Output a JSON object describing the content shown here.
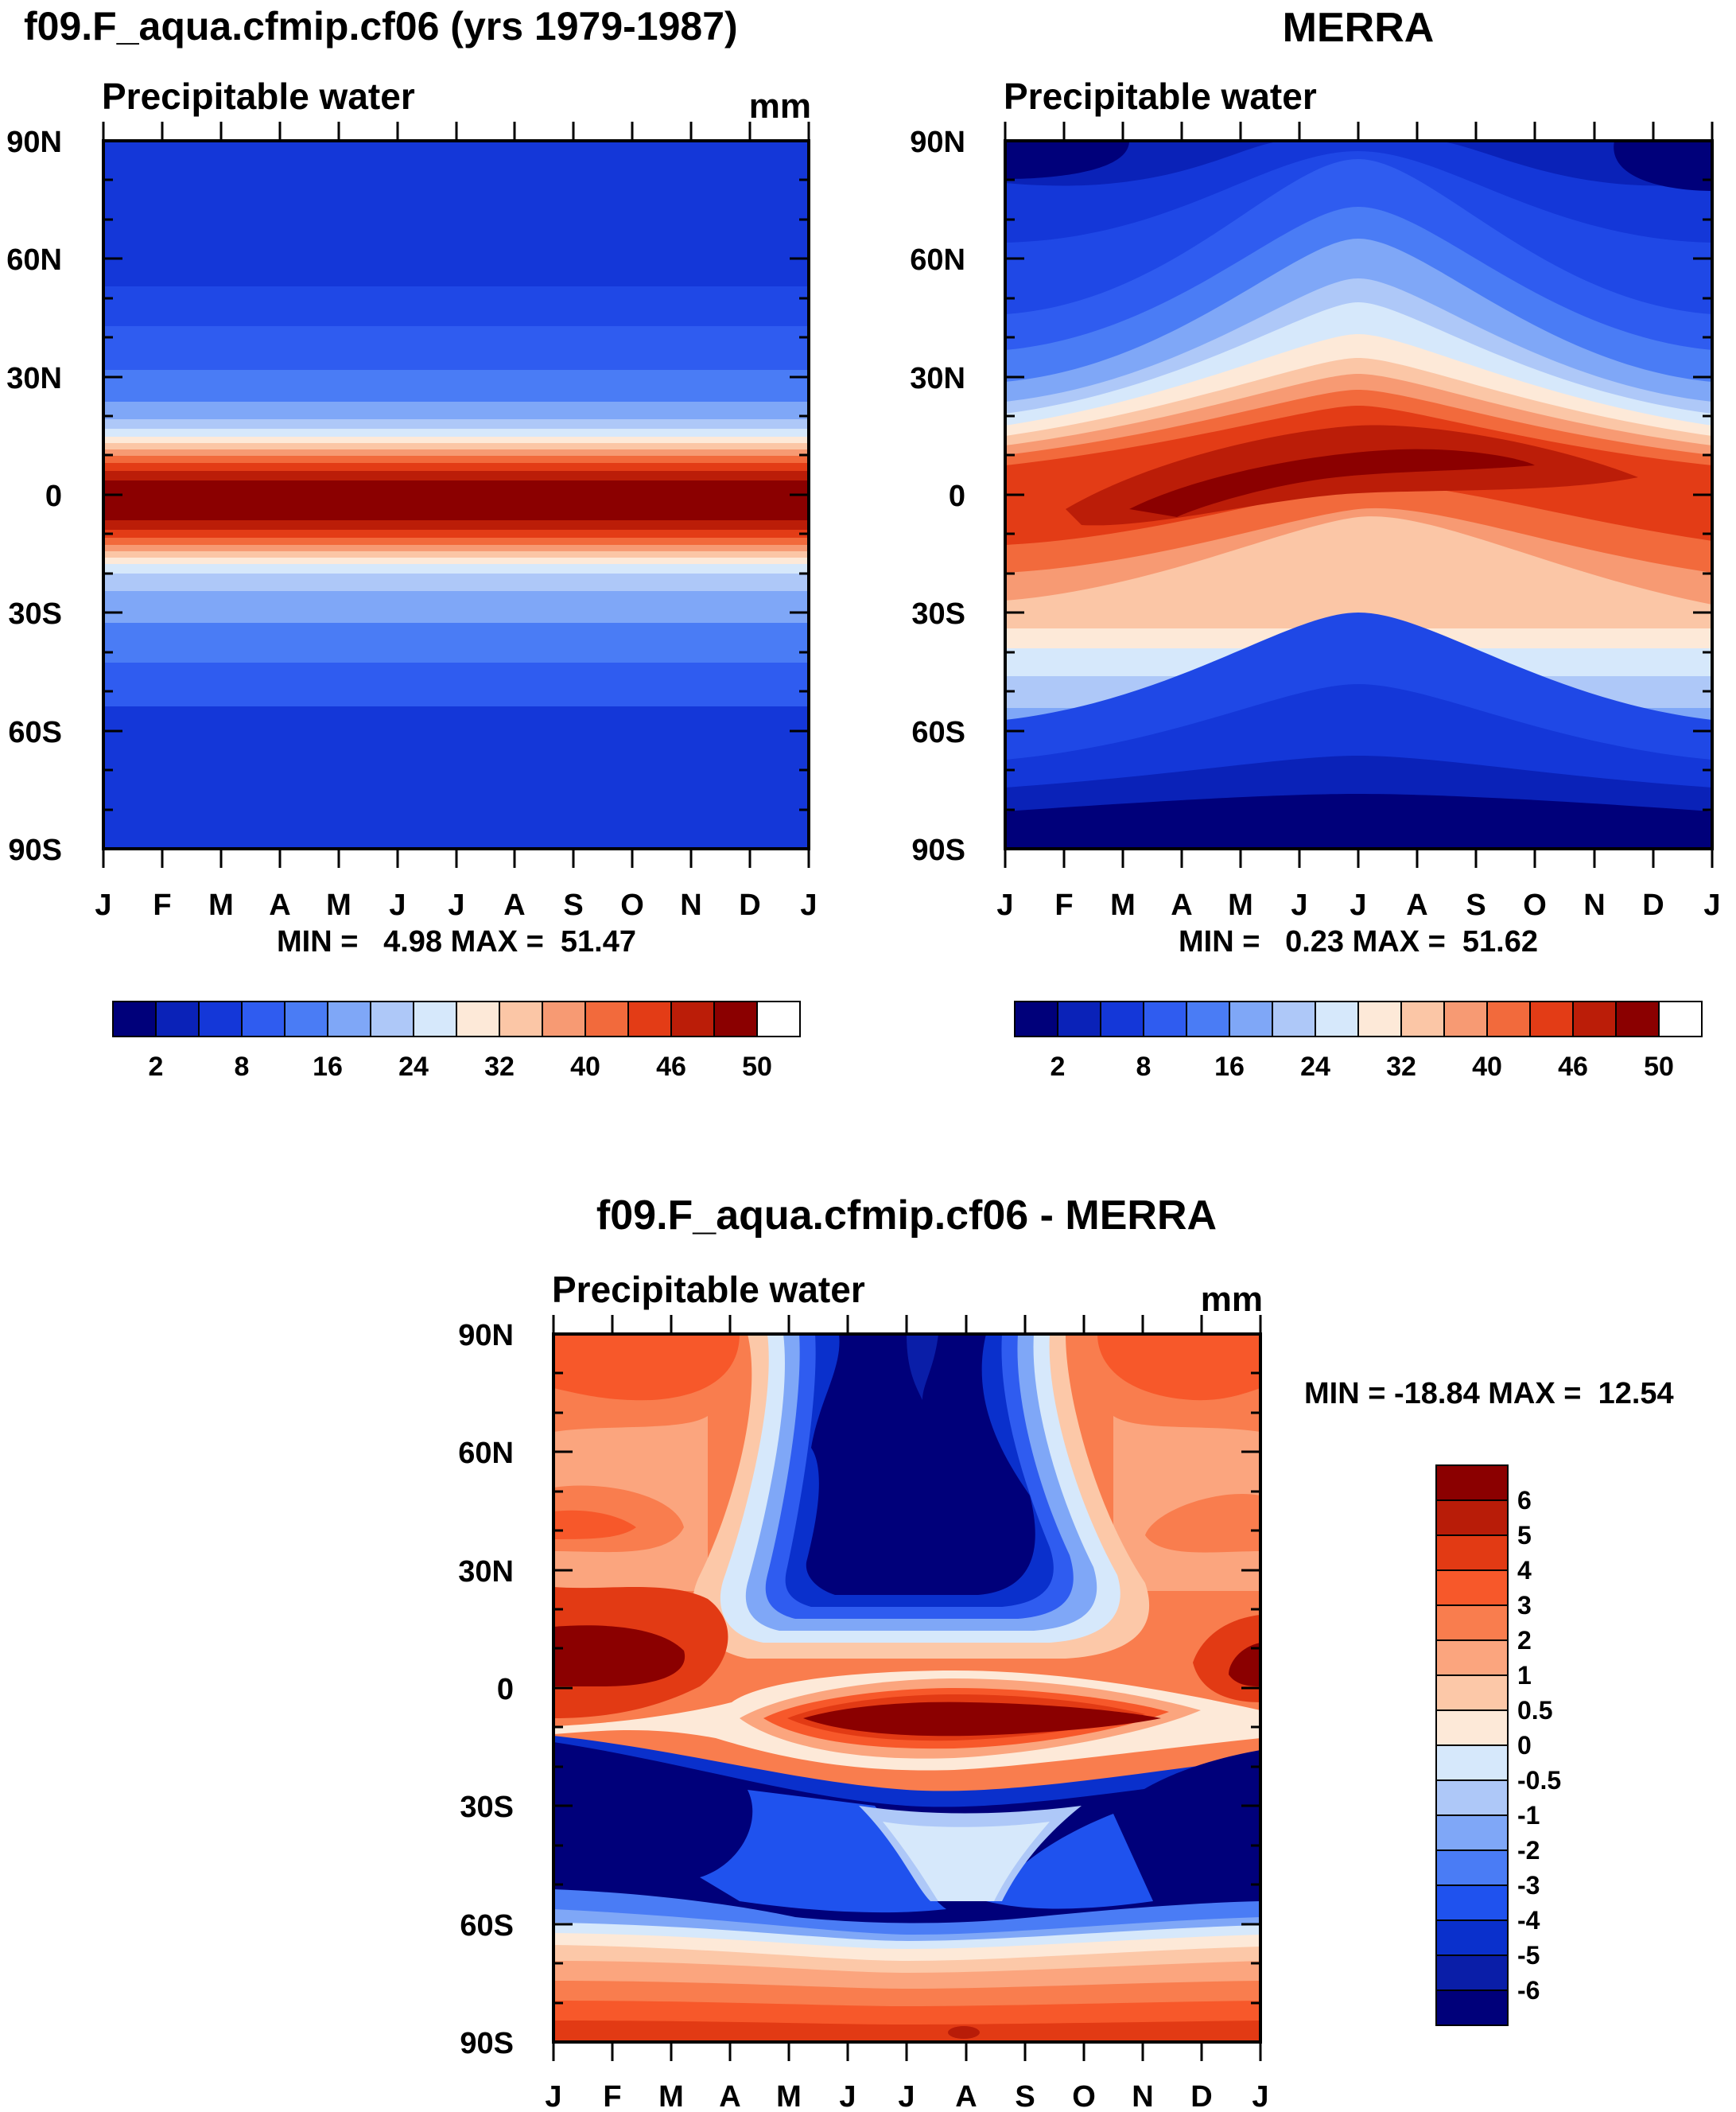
{
  "months": [
    "J",
    "F",
    "M",
    "A",
    "M",
    "J",
    "J",
    "A",
    "S",
    "O",
    "N",
    "D",
    "J"
  ],
  "lat_ticks": [
    "90N",
    "60N",
    "30N",
    "0",
    "30S",
    "60S",
    "90S"
  ],
  "chart_data": [
    {
      "type": "heatmap",
      "panel": "model",
      "title": "f09.F_aqua.cfmip.cf06 (yrs 1979-1987)",
      "subtitle": "Precipitable water",
      "units": "mm",
      "minmax": "MIN =   4.98 MAX =  51.47",
      "x_domain": [
        0,
        12
      ],
      "y_domain": [
        -90,
        90
      ],
      "levels": [
        "2",
        "8",
        "16",
        "24",
        "32",
        "40",
        "46",
        "50"
      ],
      "colors": [
        "#00007a",
        "#0a22b8",
        "#1437d8",
        "#2f5cf0",
        "#4a7cf5",
        "#7fa7f7",
        "#aec8f8",
        "#d6e8fb",
        "#fde9d8",
        "#fbc6a6",
        "#f79a73",
        "#f26a3c",
        "#e33c16",
        "#bb1d08",
        "#8b0000"
      ]
    },
    {
      "type": "heatmap",
      "panel": "obs",
      "title": "MERRA",
      "subtitle": "Precipitable water",
      "units": "",
      "minmax": "MIN =   0.23 MAX =  51.62",
      "x_domain": [
        0,
        12
      ],
      "y_domain": [
        -90,
        90
      ],
      "levels": [
        "2",
        "8",
        "16",
        "24",
        "32",
        "40",
        "46",
        "50"
      ],
      "colors": [
        "#00007a",
        "#0a22b8",
        "#1437d8",
        "#2f5cf0",
        "#4a7cf5",
        "#7fa7f7",
        "#aec8f8",
        "#d6e8fb",
        "#fde9d8",
        "#fbc6a6",
        "#f79a73",
        "#f26a3c",
        "#e33c16",
        "#bb1d08",
        "#8b0000"
      ]
    },
    {
      "type": "heatmap",
      "panel": "diff",
      "title": "f09.F_aqua.cfmip.cf06 - MERRA",
      "subtitle": "Precipitable water",
      "units": "mm",
      "minmax": "MIN = -18.84 MAX =  12.54",
      "x_domain": [
        0,
        12
      ],
      "y_domain": [
        -90,
        90
      ],
      "levels": [
        "6",
        "5",
        "4",
        "3",
        "2",
        "1",
        "0.5",
        "0",
        "-0.5",
        "-1",
        "-2",
        "-3",
        "-4",
        "-5",
        "-6"
      ],
      "colors": [
        "#8b0000",
        "#b81c08",
        "#e23a14",
        "#f7582a",
        "#f97d4e",
        "#fba57e",
        "#fcc8a8",
        "#fde9d8",
        "#d6e8fb",
        "#aec8f8",
        "#7fa7f7",
        "#4a7cf5",
        "#1f52ee",
        "#0a30cc",
        "#0a1ea8",
        "#00007a"
      ]
    }
  ]
}
